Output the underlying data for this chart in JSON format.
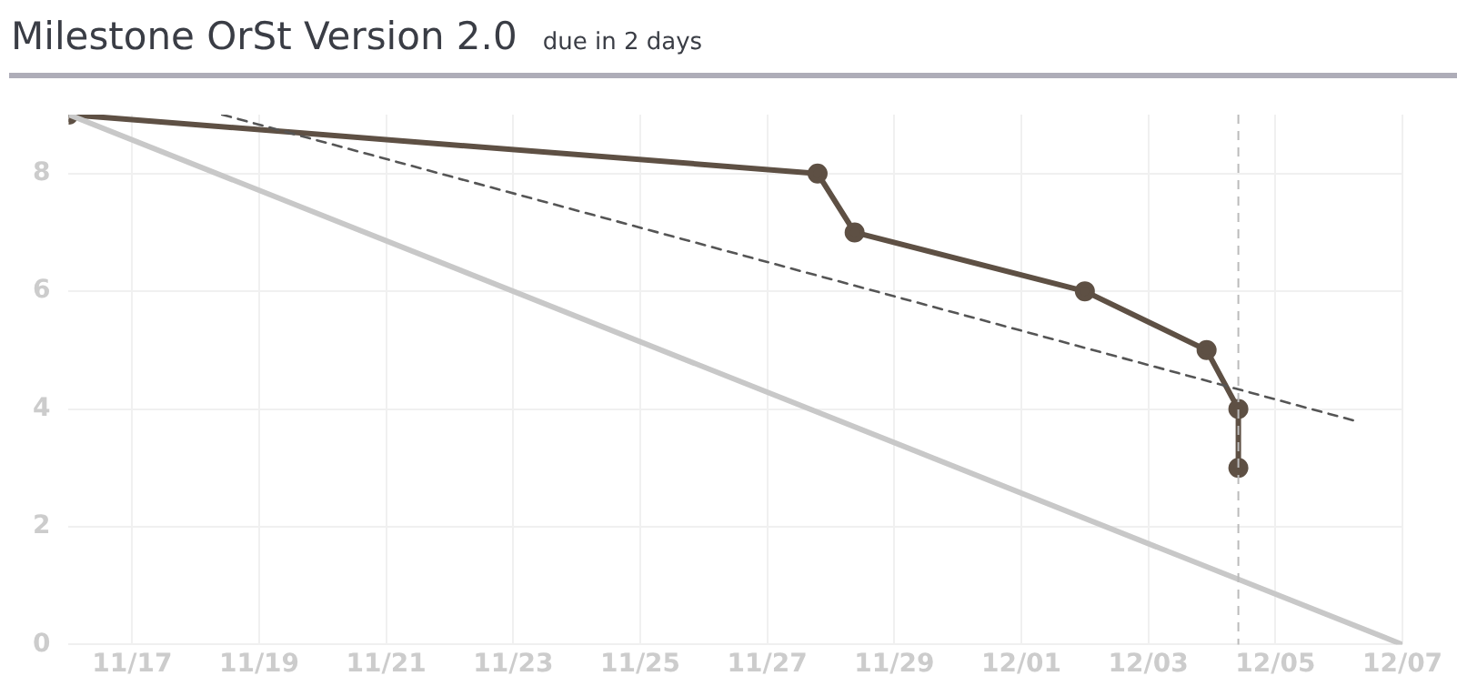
{
  "chart_data": {
    "type": "line",
    "title": "Milestone OrSt Version 2.0",
    "subtitle": "due in 2 days",
    "series": [
      {
        "color": "#c8c8c8",
        "marker": "none",
        "line_style": "solid",
        "x": [
          "--11-16",
          "--12-07"
        ],
        "values": [
          9,
          0
        ]
      },
      {
        "color": "#555555",
        "marker": "none",
        "line_style": "dashed",
        "x": [
          "--11-18T10:00",
          "--12-06T06:00"
        ],
        "values": [
          9,
          3.8
        ]
      },
      {
        "color": "#5e5044",
        "marker": "circle",
        "line_style": "solid",
        "x": [
          "--11-16",
          "--11-27T19:00",
          "--11-28T09:00",
          "--12-02T00:00",
          "--12-03T22:00",
          "--12-04T10:00",
          "--12-04T10:00"
        ],
        "values": [
          9,
          8,
          7,
          6,
          5,
          4,
          3
        ]
      }
    ],
    "xlim": [
      "--11-16",
      "--12-07"
    ],
    "xticks": [
      {
        "value": "--11-17",
        "label": "11/17"
      },
      {
        "value": "--11-19",
        "label": "11/19"
      },
      {
        "value": "--11-21",
        "label": "11/21"
      },
      {
        "value": "--11-23",
        "label": "11/23"
      },
      {
        "value": "--11-25",
        "label": "11/25"
      },
      {
        "value": "--11-27",
        "label": "11/27"
      },
      {
        "value": "--11-29",
        "label": "11/29"
      },
      {
        "value": "--12-01",
        "label": "12/01"
      },
      {
        "value": "--12-03",
        "label": "12/03"
      },
      {
        "value": "--12-05",
        "label": "12/05"
      },
      {
        "value": "--12-07",
        "label": "12/07"
      }
    ],
    "ylim": [
      0,
      9
    ],
    "yticks": [
      0,
      2,
      4,
      6,
      8
    ],
    "ref_lines": [
      {
        "axis": "x",
        "value": "--12-04T10:00",
        "color": "#bbbbbb",
        "line_style": "dashed"
      }
    ],
    "grid": true,
    "legend": false
  }
}
